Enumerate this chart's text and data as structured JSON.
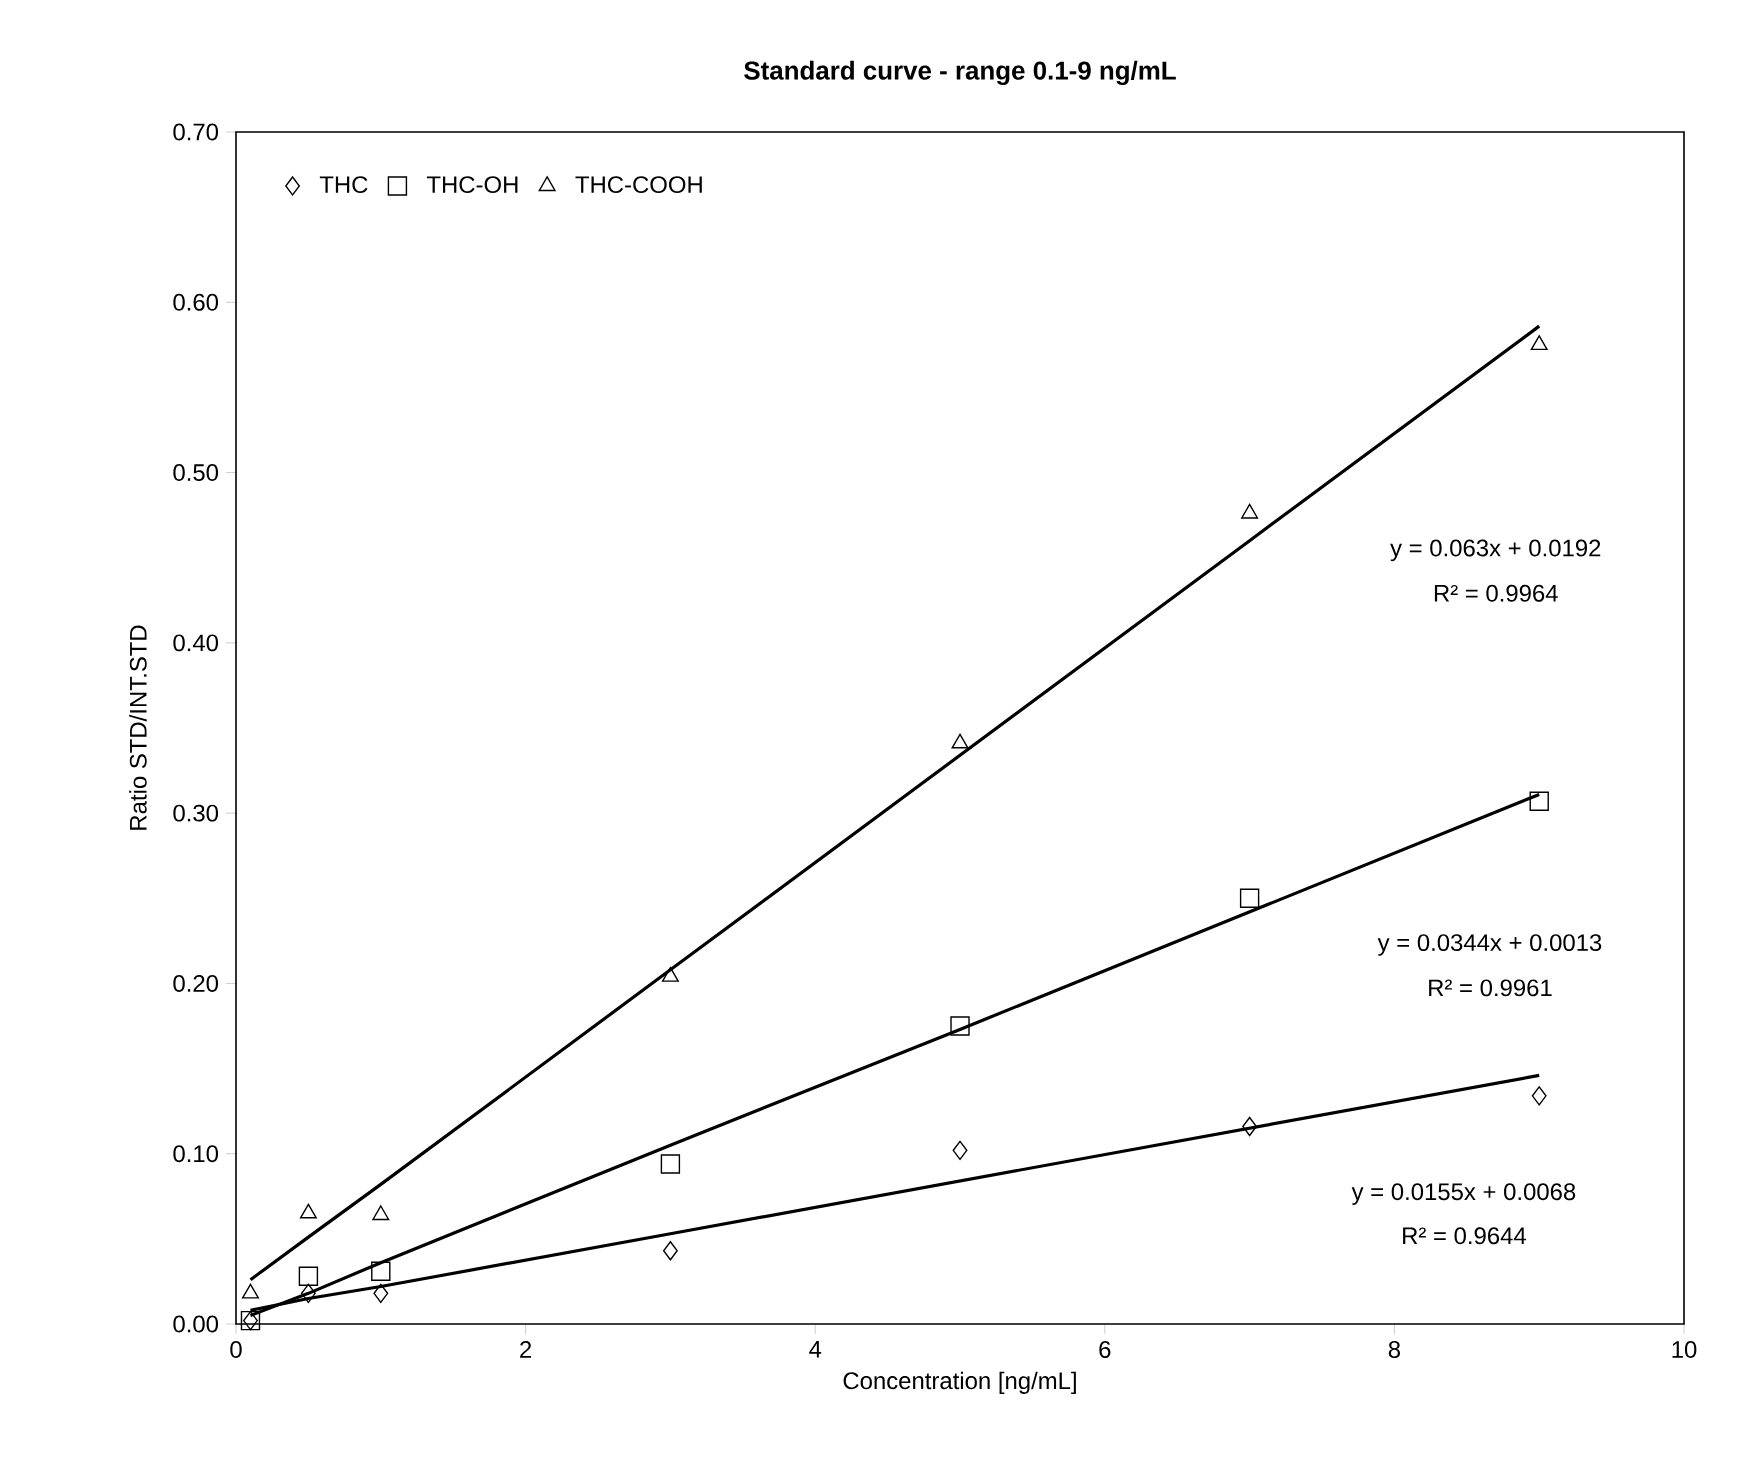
{
  "chart_data": {
    "type": "scatter",
    "title": "Standard curve - range 0.1-9 ng/mL",
    "xlabel": "Concentration [ng/mL]",
    "ylabel": "Ratio STD/INT.STD",
    "x": [
      0.1,
      0.5,
      1,
      3,
      5,
      7,
      9
    ],
    "series": [
      {
        "name": "THC",
        "color": "#000000",
        "marker": "diamond",
        "values": [
          0.002,
          0.018,
          0.018,
          0.043,
          0.102,
          0.116,
          0.134
        ]
      },
      {
        "name": "THC-OH",
        "color": "#000000",
        "marker": "square",
        "values": [
          0.002,
          0.028,
          0.031,
          0.094,
          0.175,
          0.25,
          0.307
        ]
      },
      {
        "name": "THC-COOH",
        "color": "#000000",
        "marker": "triangle",
        "values": [
          0.018,
          0.065,
          0.064,
          0.204,
          0.341,
          0.476,
          0.575
        ]
      },
      {
        "type": "line",
        "color": "#000000",
        "marker": "none",
        "values": [
          0.008,
          0.015,
          0.022,
          0.053,
          0.084,
          0.115,
          0.146
        ]
      },
      {
        "type": "line",
        "color": "#000000",
        "marker": "none",
        "values": [
          0.005,
          0.018,
          0.036,
          0.105,
          0.173,
          0.242,
          0.311
        ]
      },
      {
        "type": "line",
        "color": "#000000",
        "marker": "none",
        "values": [
          0.026,
          0.051,
          0.082,
          0.208,
          0.334,
          0.46,
          0.586
        ]
      }
    ],
    "xlim": [
      0,
      10
    ],
    "xticks": [
      0,
      2,
      4,
      6,
      8,
      10
    ],
    "ylim": [
      0,
      0.7
    ],
    "yticks": [
      {
        "value": 0,
        "label": "0.00"
      },
      {
        "value": 0.1,
        "label": "0.10"
      },
      {
        "value": 0.2,
        "label": "0.20"
      },
      {
        "value": 0.3,
        "label": "0.30"
      },
      {
        "value": 0.4,
        "label": "0.40"
      },
      {
        "value": 0.5,
        "label": "0.50"
      },
      {
        "value": 0.6,
        "label": "0.60"
      },
      {
        "value": 0.7,
        "label": "0.70"
      }
    ],
    "grid": false,
    "legend": "top left",
    "annotations": [
      "y = 0.063x + 0.0192",
      "R² = 0.9964",
      "y = 0.0344x + 0.0013",
      "R² = 0.9961",
      "y = 0.0155x + 0.0068",
      "R² = 0.9644"
    ]
  }
}
